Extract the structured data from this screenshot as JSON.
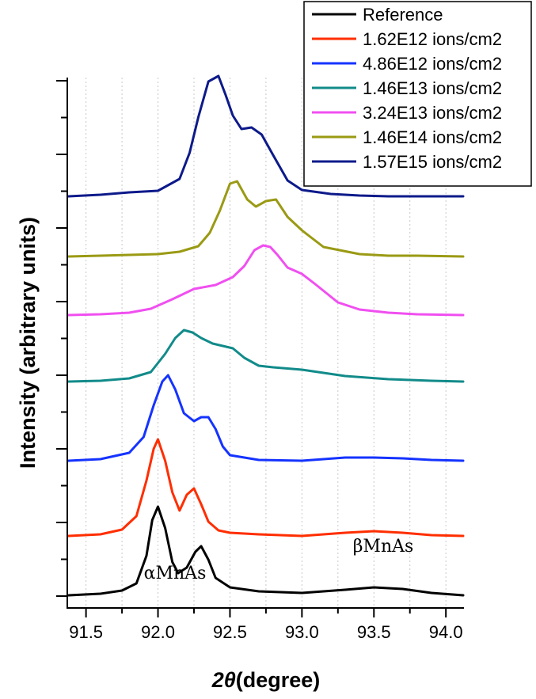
{
  "chart_data": {
    "type": "line",
    "title": "",
    "xlabel": "2θ(degree)",
    "xlabel_parts": {
      "theta_symbol": "2θ",
      "unit": "(degree)"
    },
    "ylabel": "Intensity (arbitrary units)",
    "xlim": [
      91.37,
      94.12
    ],
    "x_ticks": [
      91.5,
      92.0,
      92.5,
      93.0,
      93.5,
      94.0
    ],
    "x_tick_labels": [
      "91.5",
      "92.0",
      "92.5",
      "93.0",
      "93.5",
      "94.0"
    ],
    "y_tick_labels_shown": false,
    "grid": {
      "x": true,
      "y": false,
      "style": "dotted"
    },
    "legend_position": "top-right",
    "annotations": [
      {
        "text": "αMnAs",
        "x": 92.0
      },
      {
        "text": "βMnAs",
        "x": 93.6
      }
    ],
    "series": [
      {
        "name": "Reference",
        "color": "#000000",
        "x": [
          91.38,
          91.6,
          91.75,
          91.85,
          91.92,
          91.96,
          92.0,
          92.05,
          92.1,
          92.14,
          92.2,
          92.26,
          92.3,
          92.35,
          92.4,
          92.5,
          92.7,
          93.0,
          93.3,
          93.5,
          93.7,
          93.9,
          94.12
        ],
        "y": [
          0.0,
          0.02,
          0.06,
          0.15,
          0.5,
          0.95,
          1.12,
          0.85,
          0.42,
          0.28,
          0.35,
          0.55,
          0.62,
          0.45,
          0.22,
          0.1,
          0.05,
          0.03,
          0.07,
          0.1,
          0.08,
          0.03,
          0.0
        ]
      },
      {
        "name": "1.62E12 ions/cm2",
        "color": "#ff2e00",
        "x": [
          91.38,
          91.6,
          91.75,
          91.85,
          91.92,
          91.97,
          92.0,
          92.05,
          92.1,
          92.15,
          92.2,
          92.25,
          92.3,
          92.35,
          92.42,
          92.5,
          92.7,
          93.0,
          93.3,
          93.5,
          93.7,
          93.9,
          94.12
        ],
        "y": [
          0.0,
          0.02,
          0.08,
          0.25,
          0.7,
          1.1,
          1.22,
          0.95,
          0.55,
          0.32,
          0.52,
          0.6,
          0.4,
          0.18,
          0.07,
          0.04,
          0.02,
          0.0,
          0.04,
          0.06,
          0.04,
          0.01,
          0.0
        ]
      },
      {
        "name": "4.86E12 ions/cm2",
        "color": "#1533ff",
        "x": [
          91.38,
          91.6,
          91.8,
          91.9,
          91.97,
          92.03,
          92.07,
          92.12,
          92.18,
          92.25,
          92.3,
          92.35,
          92.4,
          92.45,
          92.5,
          92.7,
          93.0,
          93.3,
          93.5,
          93.7,
          93.9,
          94.12
        ],
        "y": [
          0.0,
          0.02,
          0.1,
          0.3,
          0.7,
          1.0,
          1.08,
          0.9,
          0.6,
          0.5,
          0.55,
          0.55,
          0.4,
          0.18,
          0.07,
          0.01,
          0.0,
          0.04,
          0.04,
          0.03,
          0.01,
          0.0
        ]
      },
      {
        "name": "1.46E13 ions/cm2",
        "color": "#118b8a",
        "x": [
          91.38,
          91.6,
          91.8,
          91.95,
          92.05,
          92.12,
          92.18,
          92.24,
          92.3,
          92.38,
          92.45,
          92.52,
          92.6,
          92.7,
          92.8,
          93.0,
          93.3,
          93.6,
          93.9,
          94.12
        ],
        "y": [
          0.0,
          0.01,
          0.04,
          0.12,
          0.35,
          0.55,
          0.65,
          0.62,
          0.55,
          0.48,
          0.45,
          0.42,
          0.3,
          0.2,
          0.18,
          0.15,
          0.07,
          0.03,
          0.01,
          0.0
        ]
      },
      {
        "name": "3.24E13 ions/cm2",
        "color": "#f04ff0",
        "x": [
          91.38,
          91.6,
          91.8,
          91.95,
          92.1,
          92.25,
          92.4,
          92.52,
          92.6,
          92.67,
          92.73,
          92.78,
          92.83,
          92.9,
          93.0,
          93.1,
          93.25,
          93.4,
          93.6,
          93.8,
          94.12
        ],
        "y": [
          0.0,
          0.01,
          0.03,
          0.08,
          0.2,
          0.33,
          0.38,
          0.48,
          0.62,
          0.82,
          0.88,
          0.86,
          0.76,
          0.6,
          0.52,
          0.38,
          0.16,
          0.07,
          0.03,
          0.01,
          0.0
        ]
      },
      {
        "name": "1.46E14 ions/cm2",
        "color": "#9a9a14",
        "x": [
          91.38,
          91.6,
          91.8,
          92.0,
          92.15,
          92.28,
          92.36,
          92.43,
          92.5,
          92.55,
          92.62,
          92.68,
          92.75,
          92.82,
          92.9,
          93.0,
          93.15,
          93.4,
          93.6,
          93.8,
          94.12
        ],
        "y": [
          0.0,
          0.01,
          0.02,
          0.03,
          0.06,
          0.13,
          0.3,
          0.58,
          0.92,
          0.95,
          0.72,
          0.63,
          0.7,
          0.72,
          0.5,
          0.33,
          0.12,
          0.03,
          0.01,
          0.01,
          0.0
        ]
      },
      {
        "name": "1.57E15 ions/cm2",
        "color": "#0d1a8a",
        "x": [
          91.38,
          91.6,
          91.8,
          92.0,
          92.15,
          92.22,
          92.28,
          92.35,
          92.42,
          92.47,
          92.52,
          92.58,
          92.65,
          92.72,
          92.8,
          92.9,
          93.0,
          93.2,
          93.4,
          93.6,
          93.8,
          94.12
        ],
        "y": [
          0.0,
          0.02,
          0.05,
          0.07,
          0.22,
          0.55,
          1.0,
          1.45,
          1.52,
          1.28,
          1.02,
          0.85,
          0.87,
          0.78,
          0.52,
          0.2,
          0.08,
          0.03,
          0.01,
          0.0,
          0.0,
          0.0
        ]
      }
    ]
  }
}
